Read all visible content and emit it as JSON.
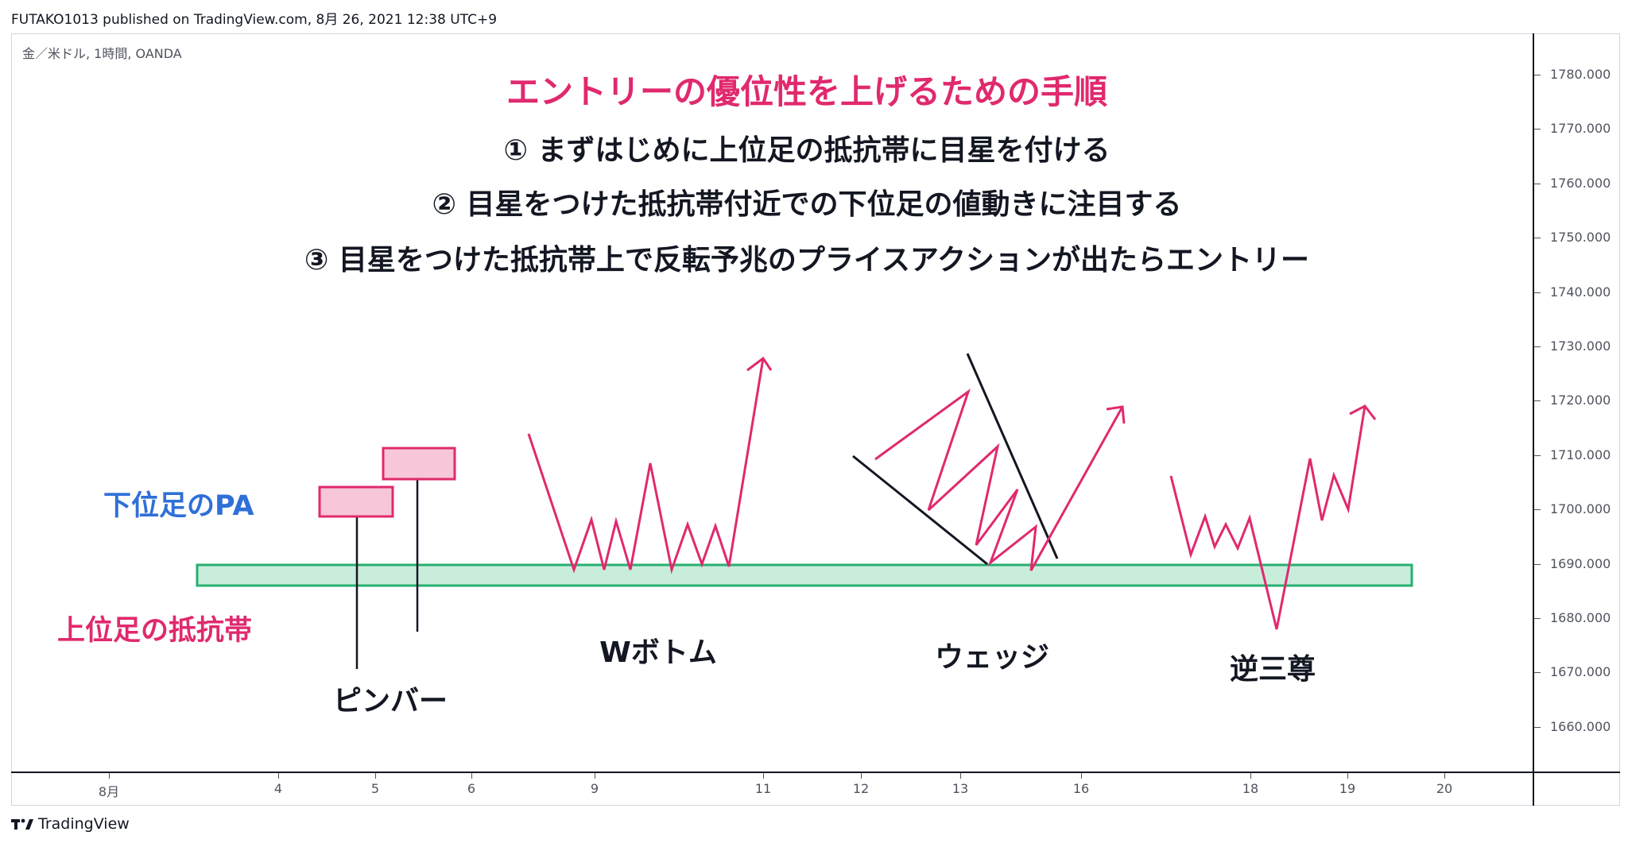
{
  "header": {
    "published_line": "FUTAKO1013 published on TradingView.com, 8月 26, 2021 12:38 UTC+9",
    "symbol_line": "金／米ドル, 1時間, OANDA"
  },
  "annotations": {
    "title": "エントリーの優位性を上げるための手順",
    "step1": "① まずはじめに上位足の抵抗帯に目星を付ける",
    "step2": "② 目星をつけた抵抗帯付近での下位足の値動きに注目する",
    "step3": "③ 目星をつけた抵抗帯上で反転予兆のプライスアクションが出たらエントリー",
    "lower_tf_pa_label": "下位足のPA",
    "upper_tf_zone_label": "上位足の抵抗帯"
  },
  "patterns": {
    "pin_bar": "ピンバー",
    "w_bottom": "Wボトム",
    "wedge": "ウェッジ",
    "inverse_head_shoulders": "逆三尊"
  },
  "price_axis": {
    "labels": [
      "1780.000",
      "1770.000",
      "1760.000",
      "1750.000",
      "1740.000",
      "1730.000",
      "1720.000",
      "1710.000",
      "1700.000",
      "1690.000",
      "1680.000",
      "1670.000",
      "1660.000"
    ]
  },
  "time_axis": {
    "labels": [
      "8月",
      "4",
      "5",
      "6",
      "9",
      "11",
      "12",
      "13",
      "16",
      "18",
      "19",
      "20"
    ]
  },
  "footer": {
    "brand": "TradingView"
  },
  "colors": {
    "accent_pink": "#e0296e",
    "pa_blue": "#2f6fd8",
    "zone_fill": "#c8eedb",
    "zone_border": "#27b070",
    "candle_fill": "#f7c6d8",
    "candle_border": "#e0296e"
  },
  "icons": {
    "logo": "tradingview-logo-icon"
  }
}
